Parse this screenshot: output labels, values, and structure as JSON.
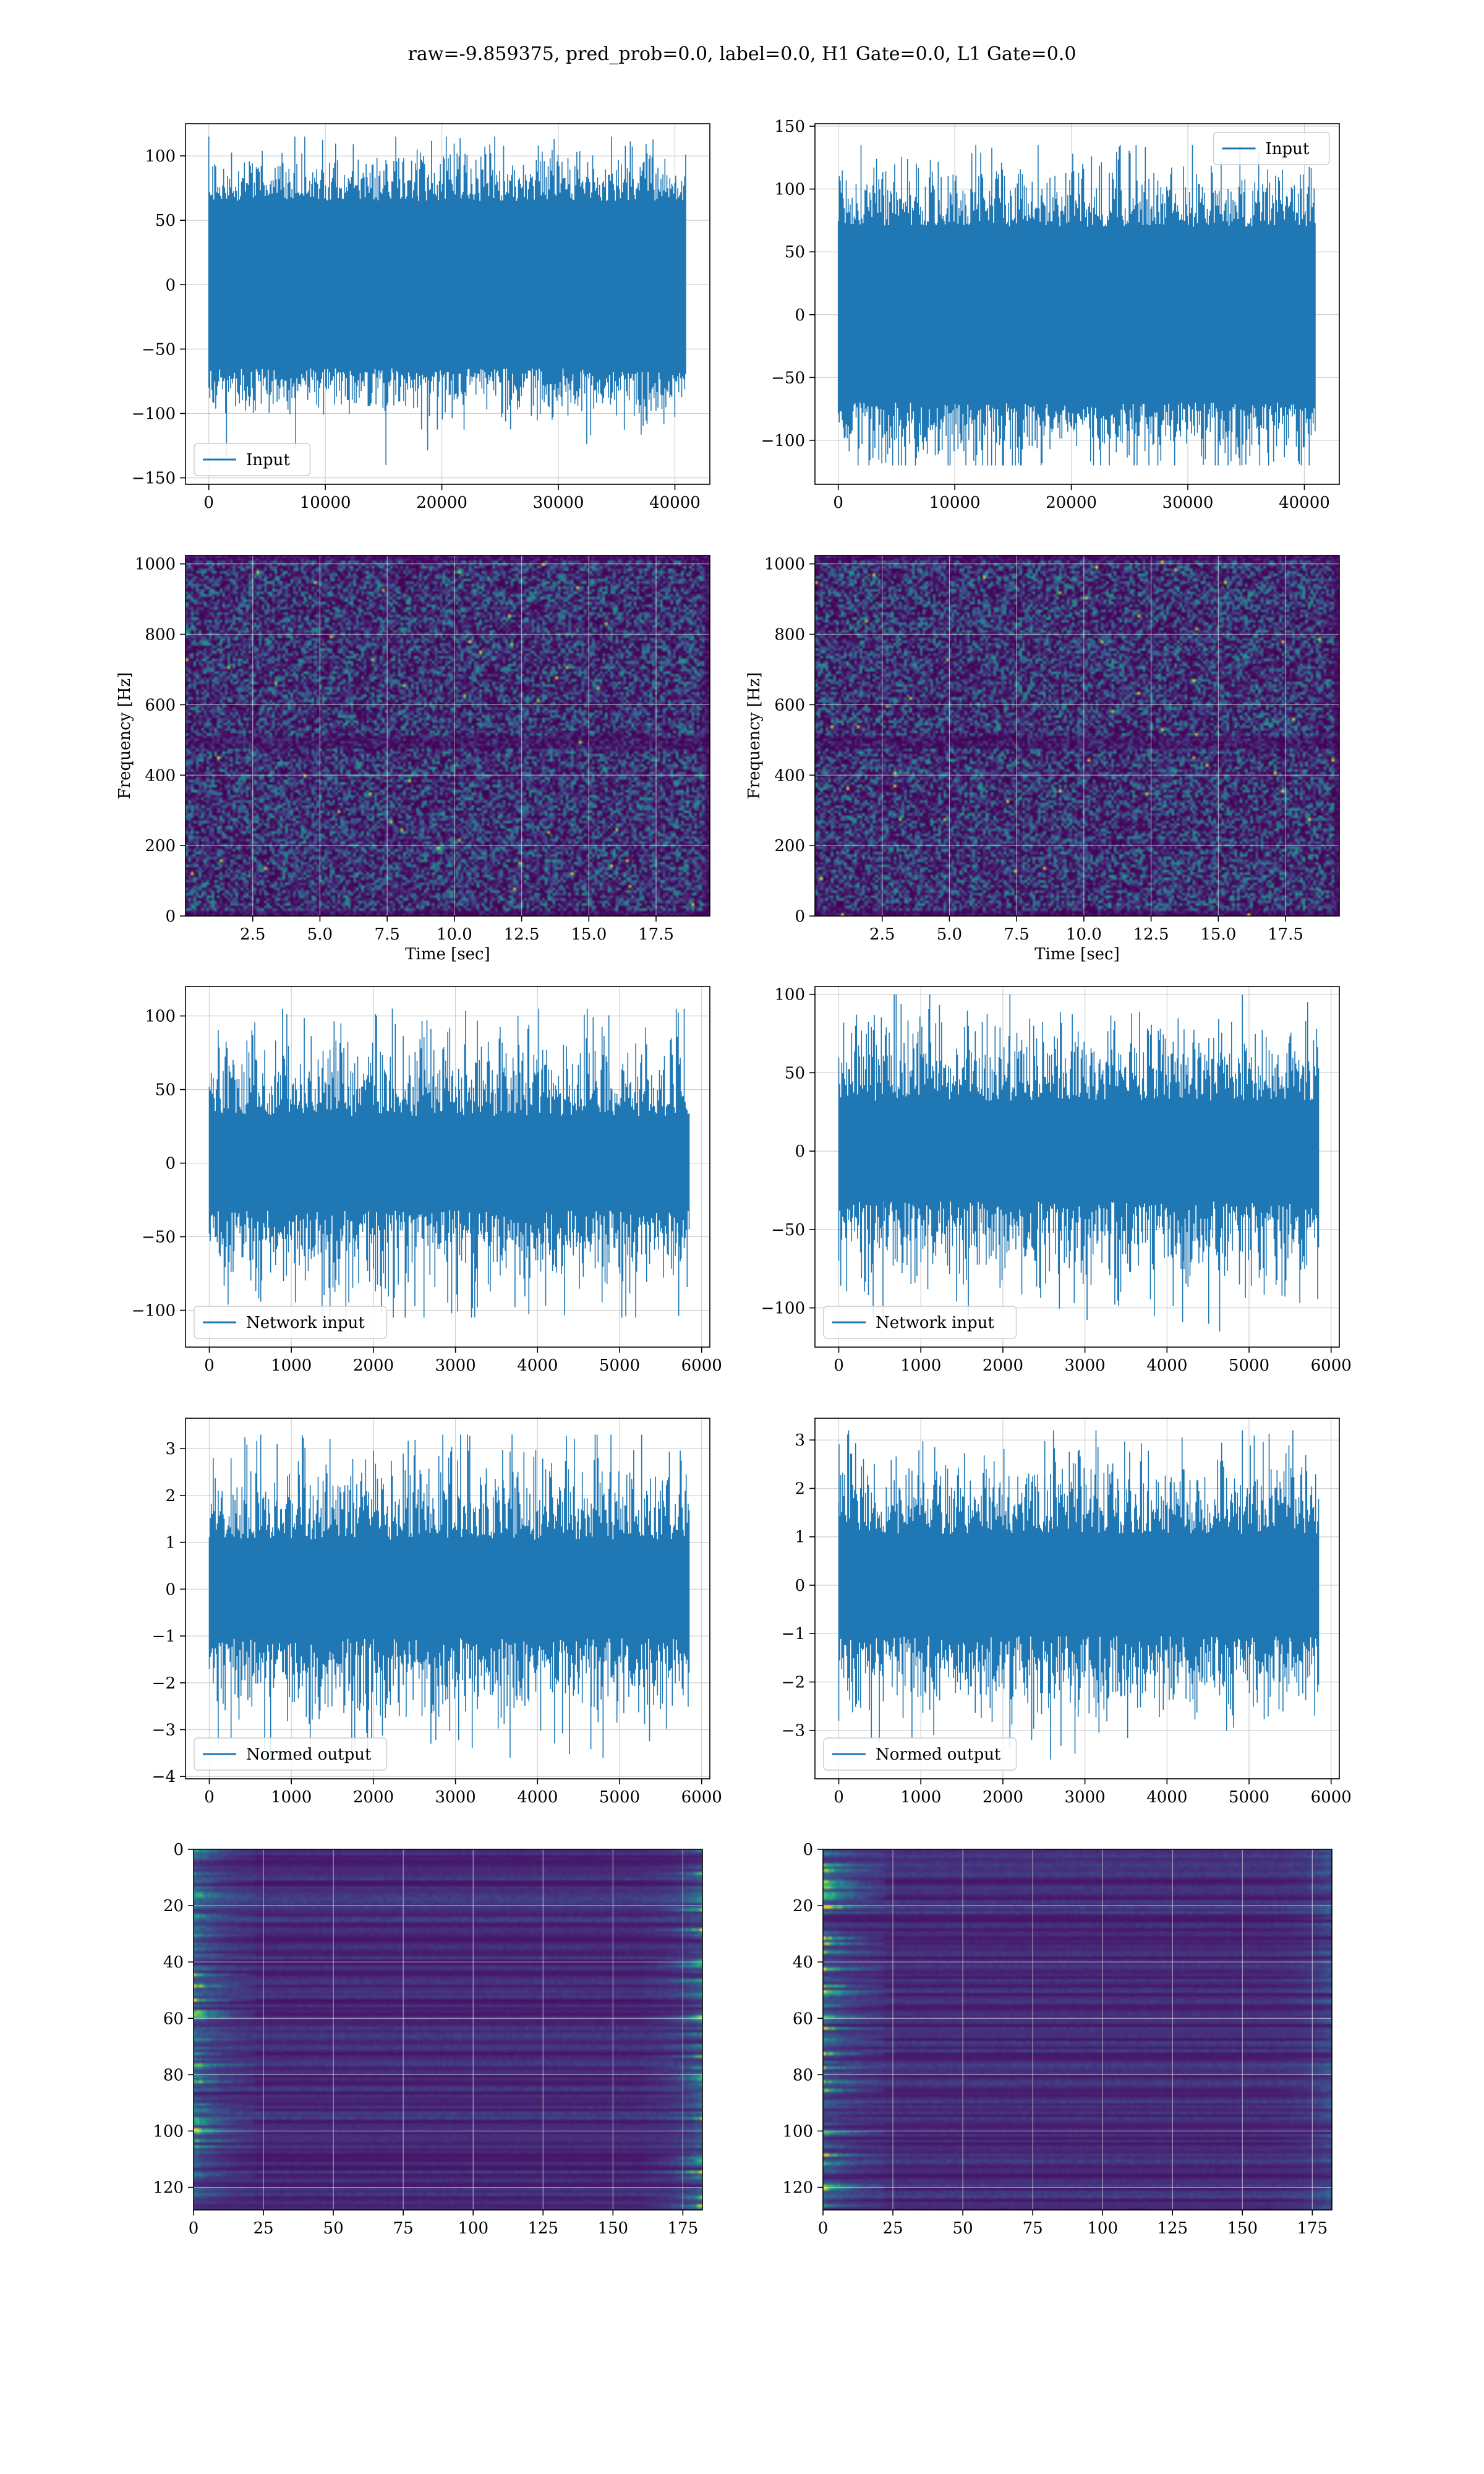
{
  "figure": {
    "title": "raw=-9.859375, pred_prob=0.0, label=0.0, H1 Gate=0.0, L1 Gate=0.0",
    "line_color": "#1f77b4",
    "grid_color": "#b0b0b0",
    "spectrogram_colormap": "viridis"
  },
  "chart_data": [
    {
      "type": "line",
      "panel": "row1-left",
      "legend": {
        "label": "Input",
        "loc": "lower left"
      },
      "xlim": [
        -2000,
        43000
      ],
      "ylim": [
        -155,
        125
      ],
      "xticks": [
        0,
        10000,
        20000,
        30000,
        40000
      ],
      "xtick_labels": [
        "0",
        "10000",
        "20000",
        "30000",
        "40000"
      ],
      "yticks": [
        -150,
        -100,
        -50,
        0,
        50,
        100
      ],
      "ytick_labels": [
        "−150",
        "−100",
        "−50",
        "0",
        "50",
        "100"
      ],
      "signal": {
        "x_start": 0,
        "x_end": 40960,
        "core_amplitude": 65,
        "spike_max": 115,
        "spike_min": -140
      }
    },
    {
      "type": "line",
      "panel": "row1-right",
      "legend": {
        "label": "Input",
        "loc": "upper right"
      },
      "xlim": [
        -2000,
        43000
      ],
      "ylim": [
        -135,
        152
      ],
      "xticks": [
        0,
        10000,
        20000,
        30000,
        40000
      ],
      "xtick_labels": [
        "0",
        "10000",
        "20000",
        "30000",
        "40000"
      ],
      "yticks": [
        -100,
        -50,
        0,
        50,
        100,
        150
      ],
      "ytick_labels": [
        "−100",
        "−50",
        "0",
        "50",
        "100",
        "150"
      ],
      "signal": {
        "x_start": 0,
        "x_end": 40960,
        "core_amplitude": 70,
        "spike_max": 135,
        "spike_min": -120
      }
    },
    {
      "type": "heatmap",
      "panel": "row2-left",
      "xlabel": "Time [sec]",
      "ylabel": "Frequency [Hz]",
      "xlim": [
        0,
        19.5
      ],
      "ylim": [
        0,
        1024
      ],
      "xticks": [
        2.5,
        5.0,
        7.5,
        10.0,
        12.5,
        15.0,
        17.5
      ],
      "xtick_labels": [
        "2.5",
        "5.0",
        "7.5",
        "10.0",
        "12.5",
        "15.0",
        "17.5"
      ],
      "yticks": [
        0,
        200,
        400,
        600,
        800,
        1000
      ],
      "ytick_labels": [
        "0",
        "200",
        "400",
        "600",
        "800",
        "1000"
      ]
    },
    {
      "type": "heatmap",
      "panel": "row2-right",
      "xlabel": "Time [sec]",
      "ylabel": "Frequency [Hz]",
      "xlim": [
        0,
        19.5
      ],
      "ylim": [
        0,
        1024
      ],
      "xticks": [
        2.5,
        5.0,
        7.5,
        10.0,
        12.5,
        15.0,
        17.5
      ],
      "xtick_labels": [
        "2.5",
        "5.0",
        "7.5",
        "10.0",
        "12.5",
        "15.0",
        "17.5"
      ],
      "yticks": [
        0,
        200,
        400,
        600,
        800,
        1000
      ],
      "ytick_labels": [
        "0",
        "200",
        "400",
        "600",
        "800",
        "1000"
      ]
    },
    {
      "type": "line",
      "panel": "row3-left",
      "legend": {
        "label": "Network input",
        "loc": "lower left"
      },
      "xlim": [
        -290,
        6100
      ],
      "ylim": [
        -125,
        120
      ],
      "xticks": [
        0,
        1000,
        2000,
        3000,
        4000,
        5000,
        6000
      ],
      "xtick_labels": [
        "0",
        "1000",
        "2000",
        "3000",
        "4000",
        "5000",
        "6000"
      ],
      "yticks": [
        -100,
        -50,
        0,
        50,
        100
      ],
      "ytick_labels": [
        "−100",
        "−50",
        "0",
        "50",
        "100"
      ],
      "signal": {
        "x_start": 0,
        "x_end": 5850,
        "core_amplitude": 32,
        "spike_max": 105,
        "spike_min": -105
      }
    },
    {
      "type": "line",
      "panel": "row3-right",
      "legend": {
        "label": "Network input",
        "loc": "lower left"
      },
      "xlim": [
        -290,
        6100
      ],
      "ylim": [
        -125,
        105
      ],
      "xticks": [
        0,
        1000,
        2000,
        3000,
        4000,
        5000,
        6000
      ],
      "xtick_labels": [
        "0",
        "1000",
        "2000",
        "3000",
        "4000",
        "5000",
        "6000"
      ],
      "yticks": [
        -100,
        -50,
        0,
        50,
        100
      ],
      "ytick_labels": [
        "−100",
        "−50",
        "0",
        "50",
        "100"
      ],
      "signal": {
        "x_start": 0,
        "x_end": 5850,
        "core_amplitude": 32,
        "spike_max": 100,
        "spike_min": -115
      }
    },
    {
      "type": "line",
      "panel": "row4-left",
      "legend": {
        "label": "Normed output",
        "loc": "lower left"
      },
      "xlim": [
        -290,
        6100
      ],
      "ylim": [
        -4.05,
        3.65
      ],
      "xticks": [
        0,
        1000,
        2000,
        3000,
        4000,
        5000,
        6000
      ],
      "xtick_labels": [
        "0",
        "1000",
        "2000",
        "3000",
        "4000",
        "5000",
        "6000"
      ],
      "yticks": [
        -4,
        -3,
        -2,
        -1,
        0,
        1,
        2,
        3
      ],
      "ytick_labels": [
        "−4",
        "−3",
        "−2",
        "−1",
        "0",
        "1",
        "2",
        "3"
      ],
      "signal": {
        "x_start": 0,
        "x_end": 5850,
        "core_amplitude": 1.05,
        "spike_max": 3.3,
        "spike_min": -3.6
      }
    },
    {
      "type": "line",
      "panel": "row4-right",
      "legend": {
        "label": "Normed output",
        "loc": "lower left"
      },
      "xlim": [
        -290,
        6100
      ],
      "ylim": [
        -4.0,
        3.45
      ],
      "xticks": [
        0,
        1000,
        2000,
        3000,
        4000,
        5000,
        6000
      ],
      "xtick_labels": [
        "0",
        "1000",
        "2000",
        "3000",
        "4000",
        "5000",
        "6000"
      ],
      "yticks": [
        -3,
        -2,
        -1,
        0,
        1,
        2,
        3
      ],
      "ytick_labels": [
        "−3",
        "−2",
        "−1",
        "0",
        "1",
        "2",
        "3"
      ],
      "signal": {
        "x_start": 0,
        "x_end": 5850,
        "core_amplitude": 1.05,
        "spike_max": 3.2,
        "spike_min": -3.6
      }
    },
    {
      "type": "heatmap",
      "panel": "row5-left",
      "xlim": [
        0,
        182
      ],
      "ylim": [
        128,
        0
      ],
      "xticks": [
        0,
        25,
        50,
        75,
        100,
        125,
        150,
        175
      ],
      "xtick_labels": [
        "0",
        "25",
        "50",
        "75",
        "100",
        "125",
        "150",
        "175"
      ],
      "yticks": [
        0,
        20,
        40,
        60,
        80,
        100,
        120
      ],
      "ytick_labels": [
        "0",
        "20",
        "40",
        "60",
        "80",
        "100",
        "120"
      ],
      "activity": "bright streaks near x<25 and x>160"
    },
    {
      "type": "heatmap",
      "panel": "row5-right",
      "xlim": [
        0,
        182
      ],
      "ylim": [
        128,
        0
      ],
      "xticks": [
        0,
        25,
        50,
        75,
        100,
        125,
        150,
        175
      ],
      "xtick_labels": [
        "0",
        "25",
        "50",
        "75",
        "100",
        "125",
        "150",
        "175"
      ],
      "yticks": [
        0,
        20,
        40,
        60,
        80,
        100,
        120
      ],
      "ytick_labels": [
        "0",
        "20",
        "40",
        "60",
        "80",
        "100",
        "120"
      ],
      "activity": "bright streaks near x<15, faint elsewhere"
    }
  ]
}
